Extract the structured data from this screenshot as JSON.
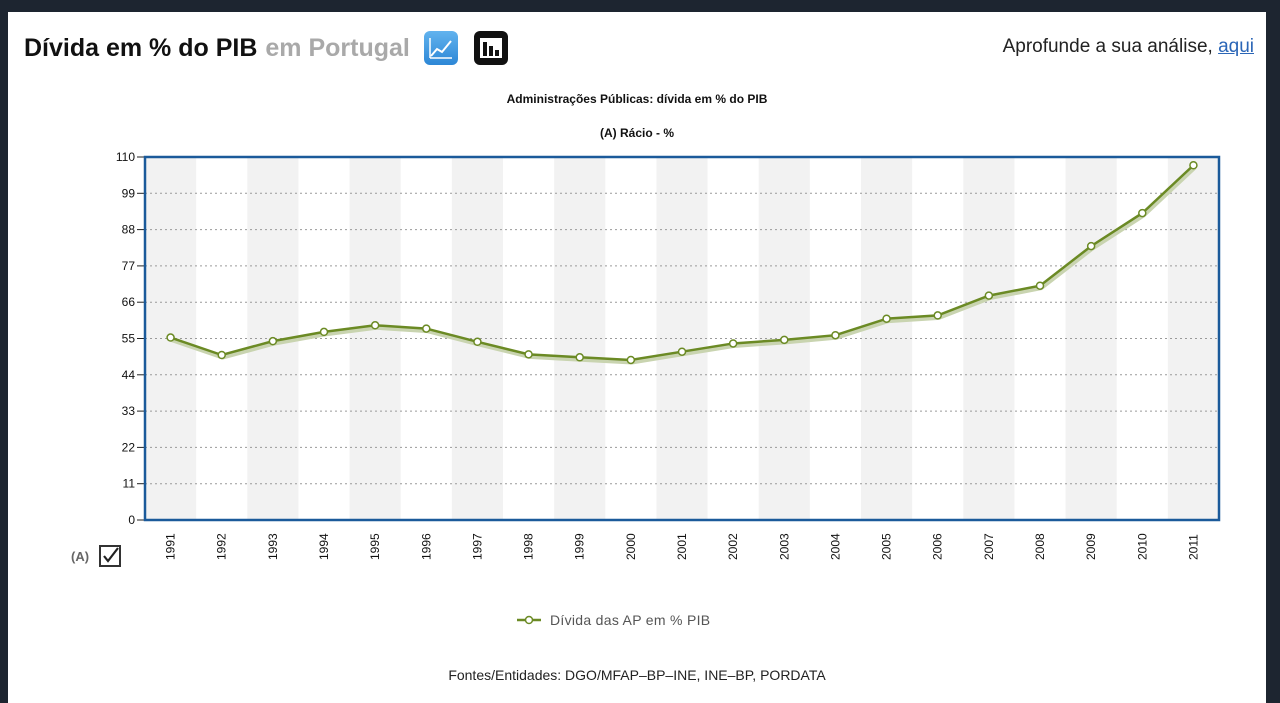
{
  "header": {
    "title_main": "Dívida em % do PIB",
    "title_sub": "em Portugal",
    "line_chart_icon": "line-chart-icon",
    "bar_chart_icon": "bar-chart-icon",
    "deep_link_text": "Aprofunde a sua análise,",
    "deep_link_anchor": "aqui"
  },
  "series_toggle": {
    "code": "(A)",
    "checked": true
  },
  "chart_data": {
    "type": "line",
    "title": "Administrações Públicas: dívida em % do PIB",
    "subtitle": "(A) Rácio - %",
    "xlabel": "",
    "ylabel": "",
    "x": [
      "1991",
      "1992",
      "1993",
      "1994",
      "1995",
      "1996",
      "1997",
      "1998",
      "1999",
      "2000",
      "2001",
      "2002",
      "2003",
      "2004",
      "2005",
      "2006",
      "2007",
      "2008",
      "2009",
      "2010",
      "2011"
    ],
    "ylim": [
      0,
      110
    ],
    "yticks": [
      0,
      11,
      22,
      33,
      44,
      55,
      66,
      77,
      88,
      99,
      110
    ],
    "grid": true,
    "legend_position": "bottom-center",
    "colors": {
      "line": "#6b8a24",
      "frame": "#1b5a9a",
      "stripe": "#f2f2f2"
    },
    "series": [
      {
        "name": "Dívida das AP em % PIB",
        "values": [
          55.3,
          50.0,
          54.2,
          57.0,
          59.0,
          58.0,
          54.0,
          50.2,
          49.3,
          48.5,
          51.0,
          53.5,
          54.6,
          56.0,
          61.0,
          62.0,
          68.0,
          71.0,
          83.0,
          93.0,
          107.5
        ]
      }
    ]
  },
  "footer": {
    "sources": "Fontes/Entidades: DGO/MFAP–BP–INE, INE–BP, PORDATA"
  }
}
